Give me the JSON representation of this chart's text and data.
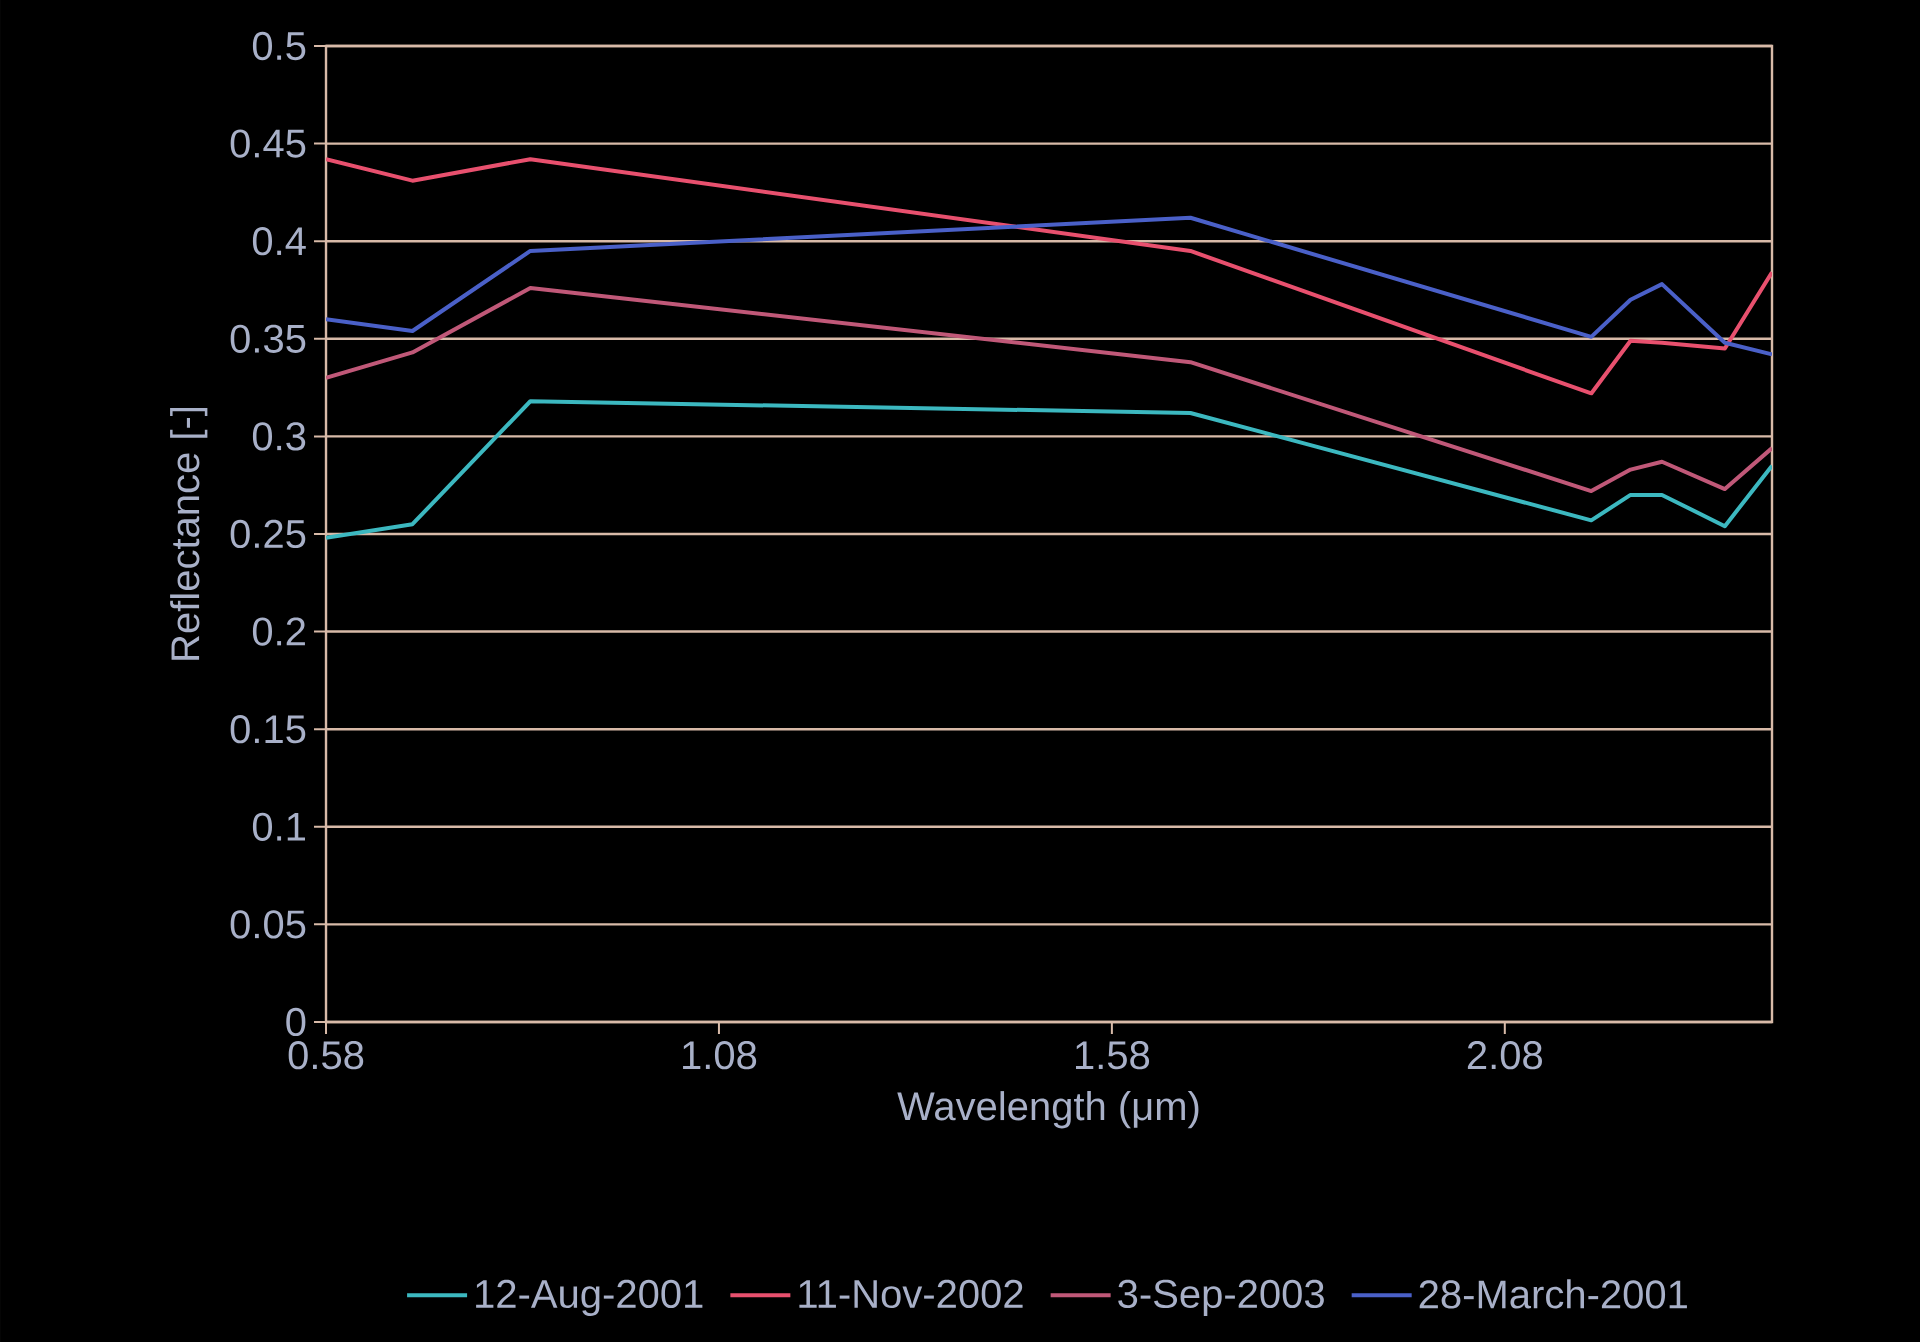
{
  "chart_data": {
    "type": "line",
    "xlabel": "Wavelength (μm)",
    "ylabel": "Reflectance [-]",
    "x": [
      0.58,
      0.69,
      0.84,
      1.68,
      2.19,
      2.24,
      2.28,
      2.36,
      2.42
    ],
    "series": [
      {
        "name": "12-Aug-2001",
        "color": "#3cb8c0",
        "values": [
          0.248,
          0.255,
          0.318,
          0.312,
          0.257,
          0.27,
          0.27,
          0.254,
          0.285
        ]
      },
      {
        "name": "11-Nov-2002",
        "color": "#e8506e",
        "values": [
          0.442,
          0.431,
          0.442,
          0.395,
          0.322,
          0.349,
          0.348,
          0.345,
          0.384
        ]
      },
      {
        "name": "3-Sep-2003",
        "color": "#c05878",
        "values": [
          0.33,
          0.343,
          0.376,
          0.338,
          0.272,
          0.283,
          0.287,
          0.273,
          0.294
        ]
      },
      {
        "name": "28-March-2001",
        "color": "#4a60c8",
        "values": [
          0.36,
          0.354,
          0.395,
          0.412,
          0.351,
          0.37,
          0.378,
          0.348,
          0.342
        ]
      }
    ],
    "xlim": [
      0.58,
      2.42
    ],
    "xticks": [
      0.58,
      1.08,
      1.58,
      2.08
    ],
    "ylim": [
      0,
      0.5
    ],
    "yticks": [
      0,
      0.05,
      0.1,
      0.15,
      0.2,
      0.25,
      0.3,
      0.35,
      0.4,
      0.45,
      0.5
    ],
    "grid": "y",
    "legend": "bottom",
    "marker": "none",
    "line_style": "solid"
  }
}
